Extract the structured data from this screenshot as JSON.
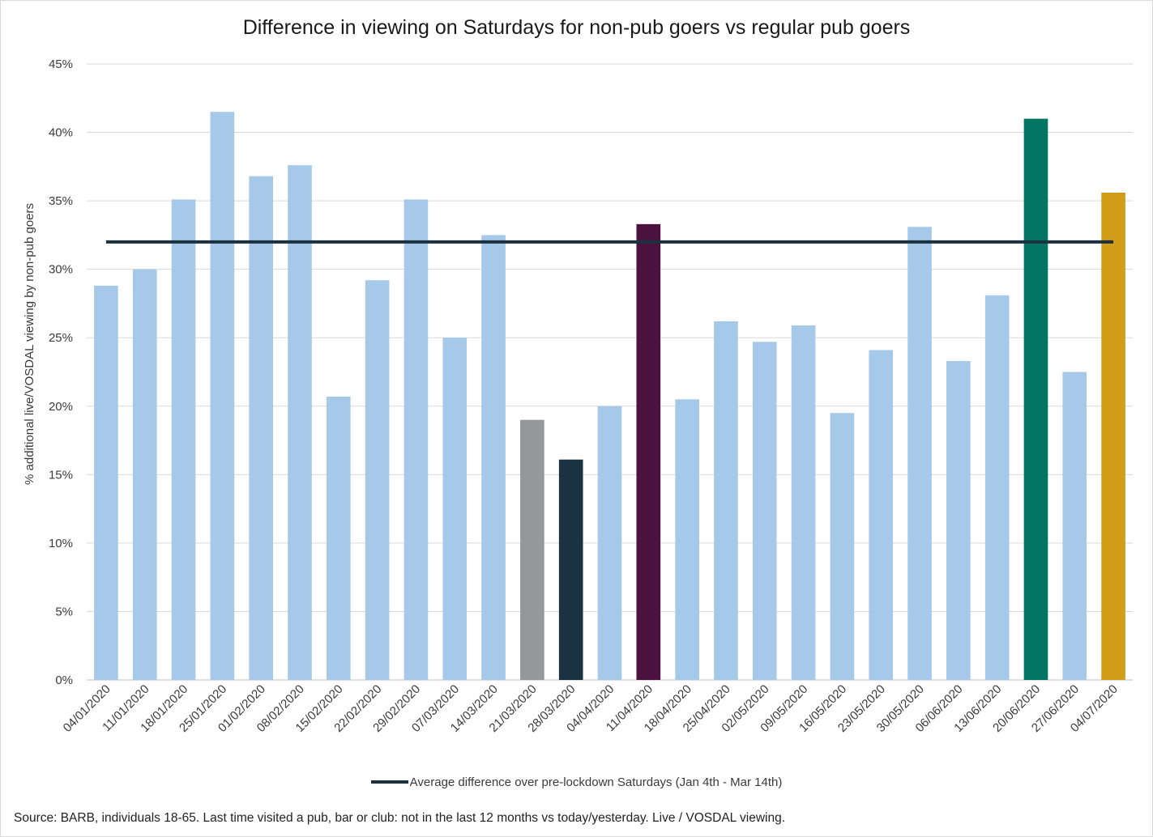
{
  "chart_data": {
    "type": "bar",
    "title": "Difference  in viewing on Saturdays for non-pub goers vs regular pub goers",
    "ylabel": "% additional live/VOSDAL viewing by non-pub goers",
    "xlabel": "",
    "ylim": [
      0,
      45
    ],
    "ytick_step": 5,
    "ytick_format": "percent",
    "grid": "horizontal",
    "legend_position": "bottom",
    "categories": [
      "04/01/2020",
      "11/01/2020",
      "18/01/2020",
      "25/01/2020",
      "01/02/2020",
      "08/02/2020",
      "15/02/2020",
      "22/02/2020",
      "29/02/2020",
      "07/03/2020",
      "14/03/2020",
      "21/03/2020",
      "28/03/2020",
      "04/04/2020",
      "11/04/2020",
      "18/04/2020",
      "25/04/2020",
      "02/05/2020",
      "09/05/2020",
      "16/05/2020",
      "23/05/2020",
      "30/05/2020",
      "06/06/2020",
      "13/06/2020",
      "20/06/2020",
      "27/06/2020",
      "04/07/2020"
    ],
    "series": [
      {
        "values": [
          28.8,
          30.0,
          35.1,
          41.5,
          36.8,
          37.6,
          20.7,
          29.2,
          35.1,
          25.0,
          32.5,
          19.0,
          16.1,
          20.0,
          33.3,
          20.5,
          26.2,
          24.7,
          25.9,
          19.5,
          24.1,
          33.1,
          23.3,
          28.1,
          41.0,
          22.5,
          35.6
        ],
        "colors": [
          "#a6c9ea",
          "#a6c9ea",
          "#a6c9ea",
          "#a6c9ea",
          "#a6c9ea",
          "#a6c9ea",
          "#a6c9ea",
          "#a6c9ea",
          "#a6c9ea",
          "#a6c9ea",
          "#a6c9ea",
          "#96979b",
          "#1b3242",
          "#a6c9ea",
          "#4b1240",
          "#a6c9ea",
          "#a6c9ea",
          "#a6c9ea",
          "#a6c9ea",
          "#a6c9ea",
          "#a6c9ea",
          "#a6c9ea",
          "#a6c9ea",
          "#a6c9ea",
          "#027565",
          "#a6c9ea",
          "#d29e18"
        ]
      },
      {
        "name": "Average difference over pre-lockdown Saturdays (Jan 4th - Mar 14th)",
        "type": "line",
        "value": 32.0,
        "color": "#1c3140"
      }
    ]
  },
  "source_text": "Source: BARB, individuals 18-65. Last time visited a pub, bar or club: not in the last 12 months vs today/yesterday. Live / VOSDAL viewing."
}
